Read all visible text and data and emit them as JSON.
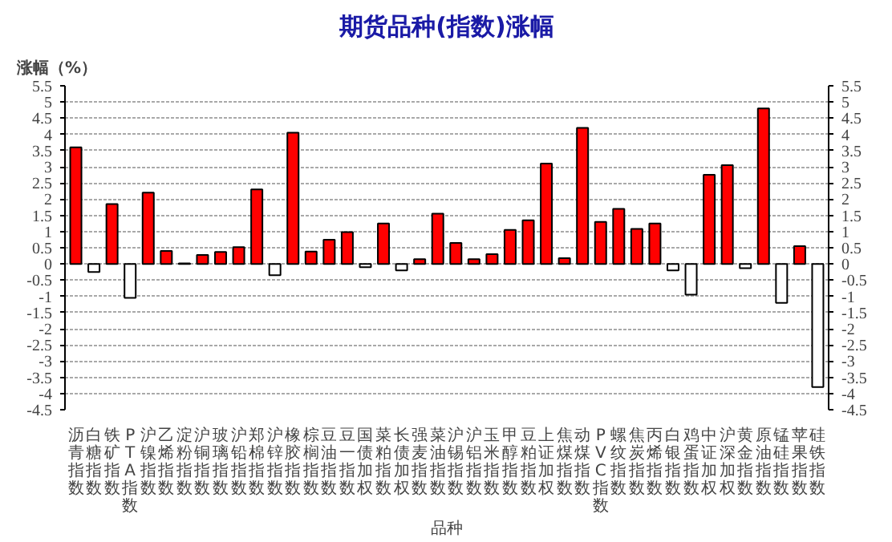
{
  "chart_data": {
    "type": "bar",
    "title": "期货品种(指数)涨幅",
    "ylabel": "涨幅（%）",
    "xlabel": "品种",
    "categories": [
      "沥青指数",
      "白糖指数",
      "铁矿指数",
      "PTA指数",
      "沪镍指数",
      "乙烯指数",
      "淀粉指数",
      "沪铜指数",
      "玻璃指数",
      "沪铅指数",
      "郑棉指数",
      "沪锌指数",
      "橡胶指数",
      "棕榈指数",
      "豆油指数",
      "豆一指数",
      "国债加权",
      "菜粕指数",
      "长债加权",
      "强麦指数",
      "菜油指数",
      "沪锡指数",
      "沪铝指数",
      "玉米指数",
      "甲醇指数",
      "豆粕指数",
      "上证加权",
      "焦煤指数",
      "动煤指数",
      "PVC指数",
      "螺纹指数",
      "焦炭指数",
      "丙烯指数",
      "白银指数",
      "鸡蛋指数",
      "中证加权",
      "沪深加权",
      "黄金指数",
      "原油指数",
      "锰硅指数",
      "苹果指数",
      "硅铁指数"
    ],
    "values": [
      3.6,
      -0.25,
      1.85,
      -1.05,
      2.2,
      0.4,
      0.02,
      0.28,
      0.37,
      0.52,
      2.3,
      -0.35,
      4.05,
      0.38,
      0.75,
      0.98,
      -0.1,
      1.25,
      -0.2,
      0.15,
      1.55,
      0.65,
      0.15,
      0.3,
      1.05,
      1.35,
      3.1,
      0.18,
      4.2,
      1.3,
      1.7,
      1.08,
      1.25,
      -0.2,
      -0.95,
      2.75,
      3.05,
      -0.13,
      4.8,
      -1.2,
      0.55,
      -3.8
    ],
    "colors": [
      "#ff0000",
      "#ffffff",
      "#ff0000",
      "#ffffff",
      "#ff0000",
      "#ff0000",
      "#ff0000",
      "#ff0000",
      "#ff0000",
      "#ff0000",
      "#ff0000",
      "#ffffff",
      "#ff0000",
      "#ff0000",
      "#ff0000",
      "#ff0000",
      "#ffffff",
      "#ff0000",
      "#ffffff",
      "#ff0000",
      "#ff0000",
      "#ff0000",
      "#ff0000",
      "#ff0000",
      "#ff0000",
      "#ff0000",
      "#ff0000",
      "#ff0000",
      "#ff0000",
      "#ff0000",
      "#ff0000",
      "#ff0000",
      "#ff0000",
      "#ffffff",
      "#ffffff",
      "#ff0000",
      "#ff0000",
      "#ffffff",
      "#ff0000",
      "#ffffff",
      "#ff0000",
      "#ffffff"
    ],
    "ylim": [
      -4.5,
      5.5
    ],
    "yticks": [
      -4.5,
      -4,
      -3.5,
      -3,
      -2.5,
      -2,
      -1.5,
      -1,
      -0.5,
      0,
      0.5,
      1,
      1.5,
      2,
      2.5,
      3,
      3.5,
      4,
      4.5,
      5,
      5.5
    ],
    "y2lim": [
      -4.5,
      5.5
    ],
    "y2ticks": [
      -4.5,
      -4,
      -3.5,
      -3,
      -2.5,
      -2,
      -1.5,
      -1,
      -0.5,
      0,
      0.5,
      1,
      1.5,
      2,
      2.5,
      3,
      3.5,
      4,
      4.5,
      5,
      5.5
    ],
    "grid": "y"
  }
}
